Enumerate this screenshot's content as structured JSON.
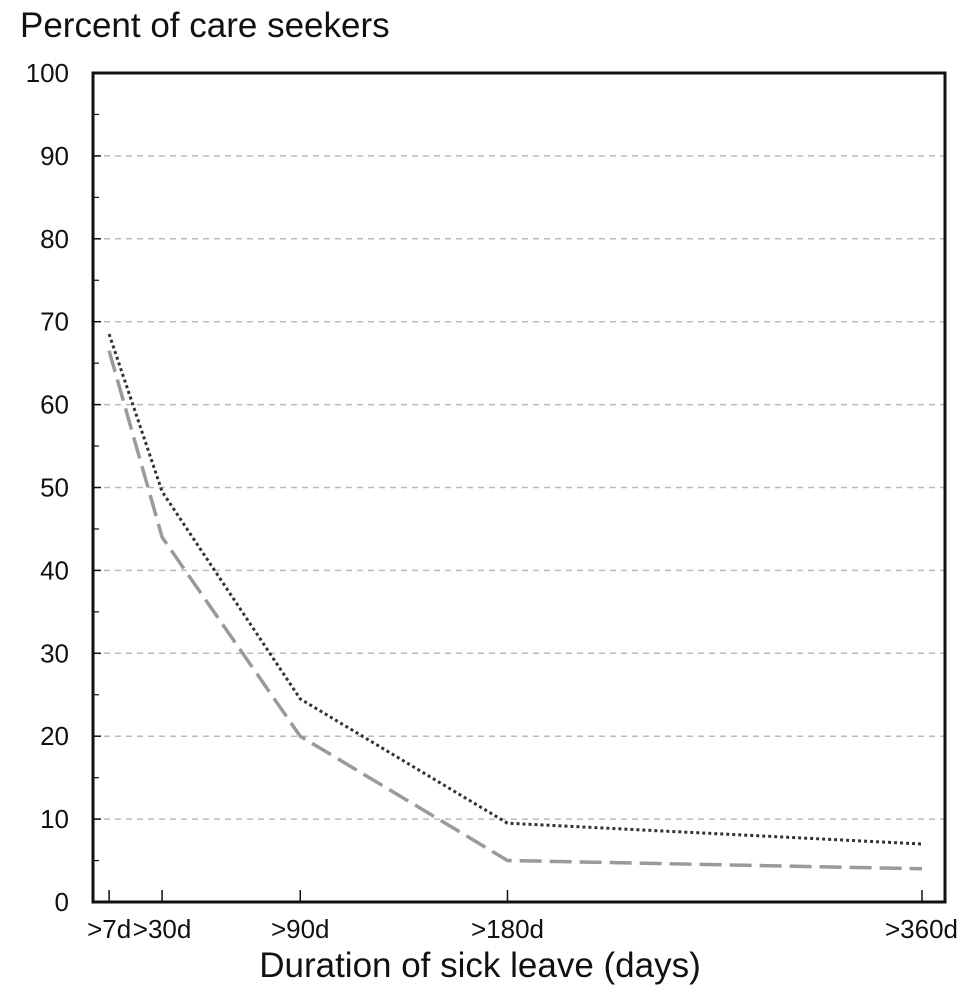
{
  "chart_data": {
    "type": "line",
    "title": "Percent of care seekers",
    "xlabel": "Duration of sick leave (days)",
    "ylabel": "",
    "x": [
      7,
      30,
      90,
      180,
      360
    ],
    "x_tick_labels": [
      ">7d",
      ">30d",
      ">90d",
      ">180d",
      ">360d"
    ],
    "xlim": [
      0,
      370
    ],
    "ylim": [
      0,
      100
    ],
    "y_ticks": [
      0,
      10,
      20,
      30,
      40,
      50,
      60,
      70,
      80,
      90,
      100
    ],
    "grid": true,
    "legend": "none",
    "series": [
      {
        "values": [
          68.5,
          49.5,
          24.5,
          9.5,
          7.0
        ],
        "color": "#333333",
        "dash": "dotted"
      },
      {
        "values": [
          66.5,
          44.0,
          20.0,
          5.0,
          4.0
        ],
        "color": "#9a9a9a",
        "dash": "dashed"
      }
    ],
    "colors": {
      "axis": "#111111",
      "grid": "#bbbbbb"
    }
  }
}
